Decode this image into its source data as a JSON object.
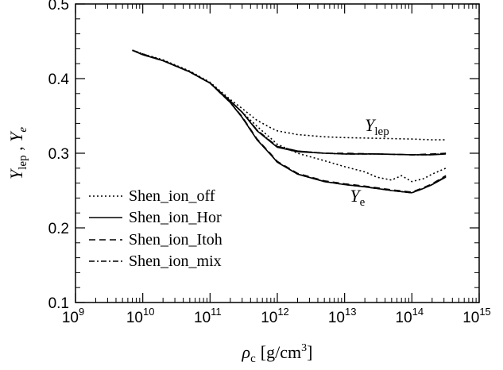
{
  "chart_data": {
    "type": "line",
    "x_scale": "log",
    "xlim": [
      1000000000.0,
      1000000000000000.0
    ],
    "ylim": [
      0.1,
      0.5
    ],
    "xlabel": {
      "prefix": "ρ",
      "sub": "c",
      "unit": "[g/cm",
      "unit_sup": "3",
      "close": "]"
    },
    "ylabel": {
      "a": "Y",
      "a_sub": "lep",
      "sep": " , ",
      "b": "Y",
      "b_sub": "e"
    },
    "x_ticks": [
      {
        "base": "10",
        "exp": "9"
      },
      {
        "base": "10",
        "exp": "10"
      },
      {
        "base": "10",
        "exp": "11"
      },
      {
        "base": "10",
        "exp": "12"
      },
      {
        "base": "10",
        "exp": "13"
      },
      {
        "base": "10",
        "exp": "14"
      },
      {
        "base": "10",
        "exp": "15"
      }
    ],
    "y_ticks": [
      "0.1",
      "0.2",
      "0.3",
      "0.4",
      "0.5"
    ],
    "annotations": [
      {
        "name": "ylep",
        "main": "Y",
        "sub": "lep",
        "x": 20000000000000.0,
        "y": 0.33
      },
      {
        "name": "ye",
        "main": "Y",
        "sub": "e",
        "x": 12000000000000.0,
        "y": 0.235
      }
    ],
    "legend_position": "bottom-left",
    "series": [
      {
        "name": "Shen_ion_off",
        "dash": "2,3",
        "lines": [
          {
            "x": [
              7000000000.0,
              10000000000.0,
              20000000000.0,
              50000000000.0,
              100000000000.0,
              200000000000.0,
              300000000000.0,
              500000000000.0,
              800000000000.0,
              1000000000000.0,
              2000000000000.0,
              5000000000000.0,
              10000000000000.0,
              30000000000000.0,
              100000000000000.0,
              200000000000000.0,
              320000000000000.0
            ],
            "y": [
              0.438,
              0.433,
              0.425,
              0.41,
              0.395,
              0.372,
              0.36,
              0.344,
              0.334,
              0.33,
              0.325,
              0.322,
              0.321,
              0.32,
              0.319,
              0.318,
              0.318
            ]
          },
          {
            "x": [
              7000000000.0,
              10000000000.0,
              20000000000.0,
              50000000000.0,
              100000000000.0,
              200000000000.0,
              300000000000.0,
              500000000000.0,
              800000000000.0,
              1000000000000.0,
              2000000000000.0,
              5000000000000.0,
              10000000000000.0,
              20000000000000.0,
              30000000000000.0,
              50000000000000.0,
              70000000000000.0,
              100000000000000.0,
              150000000000000.0,
              200000000000000.0,
              320000000000000.0
            ],
            "y": [
              0.438,
              0.433,
              0.425,
              0.41,
              0.395,
              0.37,
              0.355,
              0.336,
              0.32,
              0.312,
              0.3,
              0.29,
              0.282,
              0.275,
              0.268,
              0.264,
              0.27,
              0.262,
              0.266,
              0.272,
              0.28
            ]
          }
        ]
      },
      {
        "name": "Shen_ion_Hor",
        "dash": "",
        "lines": [
          {
            "x": [
              7000000000.0,
              10000000000.0,
              20000000000.0,
              50000000000.0,
              100000000000.0,
              200000000000.0,
              300000000000.0,
              500000000000.0,
              800000000000.0,
              1000000000000.0,
              2000000000000.0,
              5000000000000.0,
              10000000000000.0,
              30000000000000.0,
              100000000000000.0,
              200000000000000.0,
              320000000000000.0
            ],
            "y": [
              0.438,
              0.432,
              0.424,
              0.409,
              0.394,
              0.37,
              0.355,
              0.33,
              0.315,
              0.308,
              0.302,
              0.3,
              0.299,
              0.299,
              0.298,
              0.298,
              0.299
            ]
          },
          {
            "x": [
              7000000000.0,
              10000000000.0,
              20000000000.0,
              50000000000.0,
              100000000000.0,
              200000000000.0,
              300000000000.0,
              500000000000.0,
              800000000000.0,
              1000000000000.0,
              2000000000000.0,
              5000000000000.0,
              10000000000000.0,
              20000000000000.0,
              50000000000000.0,
              100000000000000.0,
              150000000000000.0,
              200000000000000.0,
              320000000000000.0
            ],
            "y": [
              0.438,
              0.432,
              0.424,
              0.409,
              0.394,
              0.368,
              0.348,
              0.318,
              0.298,
              0.288,
              0.272,
              0.262,
              0.258,
              0.255,
              0.25,
              0.247,
              0.253,
              0.258,
              0.268
            ]
          }
        ]
      },
      {
        "name": "Shen_ion_Itoh",
        "dash": "8,5",
        "lines": [
          {
            "x": [
              7000000000.0,
              10000000000.0,
              20000000000.0,
              50000000000.0,
              100000000000.0,
              200000000000.0,
              300000000000.0,
              500000000000.0,
              800000000000.0,
              1000000000000.0,
              2000000000000.0,
              5000000000000.0,
              10000000000000.0,
              30000000000000.0,
              100000000000000.0,
              200000000000000.0,
              320000000000000.0
            ],
            "y": [
              0.438,
              0.433,
              0.424,
              0.409,
              0.394,
              0.37,
              0.355,
              0.331,
              0.316,
              0.309,
              0.303,
              0.3,
              0.3,
              0.299,
              0.298,
              0.299,
              0.3
            ]
          },
          {
            "x": [
              7000000000.0,
              10000000000.0,
              20000000000.0,
              50000000000.0,
              100000000000.0,
              200000000000.0,
              300000000000.0,
              500000000000.0,
              800000000000.0,
              1000000000000.0,
              2000000000000.0,
              5000000000000.0,
              10000000000000.0,
              20000000000000.0,
              50000000000000.0,
              100000000000000.0,
              150000000000000.0,
              200000000000000.0,
              320000000000000.0
            ],
            "y": [
              0.438,
              0.433,
              0.424,
              0.409,
              0.394,
              0.368,
              0.349,
              0.319,
              0.299,
              0.289,
              0.273,
              0.263,
              0.259,
              0.256,
              0.251,
              0.248,
              0.254,
              0.259,
              0.27
            ]
          }
        ]
      },
      {
        "name": "Shen_ion_mix",
        "dash": "7,3,2,3",
        "lines": [
          {
            "x": [
              7000000000.0,
              10000000000.0,
              20000000000.0,
              50000000000.0,
              100000000000.0,
              200000000000.0,
              300000000000.0,
              500000000000.0,
              800000000000.0,
              1000000000000.0,
              2000000000000.0,
              5000000000000.0,
              10000000000000.0,
              30000000000000.0,
              100000000000000.0,
              200000000000000.0,
              320000000000000.0
            ],
            "y": [
              0.438,
              0.432,
              0.424,
              0.409,
              0.394,
              0.37,
              0.355,
              0.331,
              0.316,
              0.309,
              0.303,
              0.3,
              0.299,
              0.299,
              0.298,
              0.298,
              0.3
            ]
          },
          {
            "x": [
              7000000000.0,
              10000000000.0,
              20000000000.0,
              50000000000.0,
              100000000000.0,
              200000000000.0,
              300000000000.0,
              500000000000.0,
              800000000000.0,
              1000000000000.0,
              2000000000000.0,
              5000000000000.0,
              10000000000000.0,
              20000000000000.0,
              50000000000000.0,
              100000000000000.0,
              150000000000000.0,
              200000000000000.0,
              320000000000000.0
            ],
            "y": [
              0.438,
              0.432,
              0.424,
              0.409,
              0.394,
              0.368,
              0.348,
              0.318,
              0.298,
              0.288,
              0.272,
              0.262,
              0.258,
              0.255,
              0.25,
              0.247,
              0.253,
              0.258,
              0.269
            ]
          }
        ]
      }
    ]
  }
}
